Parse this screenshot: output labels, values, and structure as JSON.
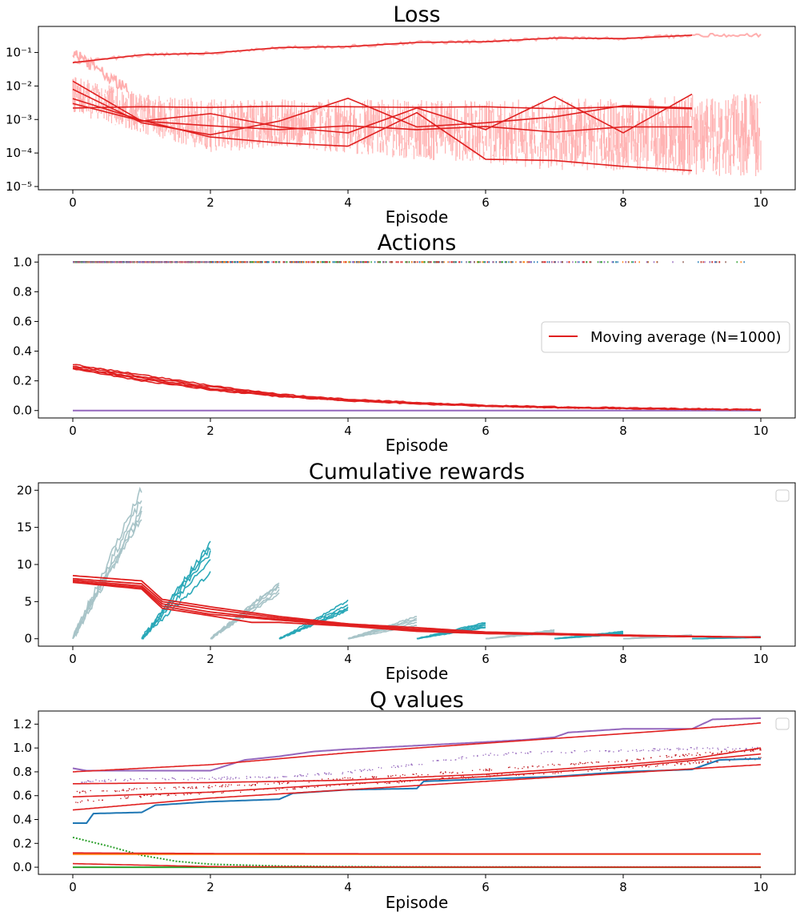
{
  "chart_data": [
    {
      "type": "line",
      "title": "Loss",
      "xlabel": "Episode",
      "ylabel": "",
      "xlim": [
        -0.5,
        10.5
      ],
      "ylim": [
        8e-06,
        0.6
      ],
      "yscale": "log",
      "xticks": [
        0,
        2,
        4,
        6,
        8,
        10
      ],
      "yticks": [
        1e-05,
        0.0001,
        0.001,
        0.01,
        0.1
      ],
      "ytick_labels": [
        "10⁻⁵",
        "10⁻⁴",
        "10⁻³",
        "10⁻²",
        "10⁻¹"
      ],
      "grid": false,
      "colors": {
        "raw": "#ff9a9a",
        "average": "#e02020"
      },
      "series": [
        {
          "x": [
            0,
            1,
            2,
            3,
            4,
            5,
            6,
            7,
            8,
            9
          ],
          "values": [
            0.05,
            0.085,
            0.095,
            0.14,
            0.15,
            0.2,
            0.21,
            0.27,
            0.26,
            0.33
          ]
        },
        {
          "x": [
            0,
            1,
            2,
            3,
            4,
            5,
            6,
            7,
            8,
            9
          ],
          "values": [
            0.014,
            0.0009,
            0.0015,
            0.0006,
            0.0004,
            0.0022,
            0.0005,
            0.0048,
            0.0004,
            0.0057
          ]
        },
        {
          "x": [
            0,
            1,
            2,
            3,
            4,
            5,
            6,
            7,
            8,
            9
          ],
          "values": [
            0.008,
            0.0008,
            0.00035,
            0.0009,
            0.0043,
            0.0006,
            0.0008,
            0.0012,
            0.0026,
            0.0022
          ]
        },
        {
          "x": [
            0,
            1,
            2,
            3,
            4,
            5,
            6,
            7,
            8,
            9
          ],
          "values": [
            0.003,
            0.0009,
            0.00065,
            0.0005,
            0.00065,
            0.0005,
            0.00062,
            0.00042,
            0.0006,
            0.0006
          ]
        },
        {
          "x": [
            0,
            1,
            2,
            3,
            4,
            5,
            6,
            7,
            8,
            9
          ],
          "values": [
            0.0022,
            0.0024,
            0.0023,
            0.0025,
            0.0024,
            0.0023,
            0.0024,
            0.0021,
            0.0024,
            0.0021
          ]
        },
        {
          "x": [
            0,
            1,
            2,
            3,
            4,
            5,
            6,
            7,
            8,
            9
          ],
          "values": [
            0.0042,
            0.00095,
            0.0003,
            0.0002,
            0.00016,
            0.0016,
            6.5e-05,
            6e-05,
            4e-05,
            3e-05
          ]
        }
      ]
    },
    {
      "type": "scatter",
      "title": "Actions",
      "xlabel": "Episode",
      "ylabel": "",
      "xlim": [
        -0.5,
        10.5
      ],
      "ylim": [
        -0.05,
        1.05
      ],
      "xticks": [
        0,
        2,
        4,
        6,
        8,
        10
      ],
      "yticks": [
        0.0,
        0.2,
        0.4,
        0.6,
        0.8,
        1.0
      ],
      "ytick_labels": [
        "0.0",
        "0.2",
        "0.4",
        "0.6",
        "0.8",
        "1.0"
      ],
      "grid": false,
      "legend": {
        "position": "center-right",
        "entries": [
          {
            "label": "Moving average (N=1000)",
            "color": "#e02020"
          }
        ]
      },
      "series": [
        {
          "name": "Moving average (N=1000)",
          "x": [
            0,
            1,
            2,
            3,
            4,
            5,
            6,
            7,
            8,
            9,
            10
          ],
          "values": [
            0.29,
            0.22,
            0.15,
            0.1,
            0.07,
            0.05,
            0.03,
            0.02,
            0.015,
            0.01,
            0.005
          ]
        },
        {
          "x": [
            0,
            1,
            2,
            3,
            4,
            5,
            6,
            7,
            8,
            9,
            10
          ],
          "values": [
            0.31,
            0.24,
            0.17,
            0.11,
            0.075,
            0.055,
            0.035,
            0.025,
            0.018,
            0.012,
            0.006
          ]
        },
        {
          "x": [
            0,
            1,
            2,
            3,
            4,
            5,
            6,
            7,
            8,
            9,
            10
          ],
          "values": [
            0.28,
            0.2,
            0.14,
            0.095,
            0.065,
            0.045,
            0.03,
            0.02,
            0.014,
            0.009,
            0.005
          ]
        },
        {
          "x": [
            0,
            1,
            2,
            3,
            4,
            5,
            6,
            7,
            8,
            9,
            10
          ],
          "values": [
            0.3,
            0.23,
            0.16,
            0.105,
            0.07,
            0.05,
            0.032,
            0.022,
            0.016,
            0.011,
            0.006
          ]
        },
        {
          "x": [
            0,
            1,
            2,
            3,
            4,
            5,
            6,
            7,
            8,
            9,
            10
          ],
          "values": [
            0.285,
            0.21,
            0.145,
            0.098,
            0.068,
            0.048,
            0.031,
            0.021,
            0.015,
            0.01,
            0.005
          ]
        }
      ]
    },
    {
      "type": "line",
      "title": "Cumulative rewards",
      "xlabel": "Episode",
      "ylabel": "",
      "xlim": [
        -0.5,
        10.5
      ],
      "ylim": [
        -1,
        21
      ],
      "xticks": [
        0,
        2,
        4,
        6,
        8,
        10
      ],
      "yticks": [
        0,
        5,
        10,
        15,
        20
      ],
      "ytick_labels": [
        "0",
        "5",
        "10",
        "15",
        "20"
      ],
      "grid": false,
      "legend": {
        "position": "top-right",
        "entries": []
      },
      "colors": {
        "even_episodes": "#a8c4c8",
        "odd_episodes": "#2aa8b8",
        "average": "#e02020"
      },
      "episode_finals": [
        [
          20.2,
          18.8,
          17.5,
          17.0,
          16.4
        ],
        [
          12.8,
          12.3,
          11.6,
          10.6,
          8.9
        ],
        [
          7.6,
          7.3,
          7.0,
          6.5,
          6.1
        ],
        [
          5.1,
          4.6,
          4.2,
          4.0,
          3.8
        ],
        [
          3.0,
          2.7,
          2.5,
          2.2,
          1.8
        ],
        [
          2.2,
          2.0,
          1.8,
          1.6,
          1.5
        ],
        [
          1.2,
          1.1,
          1.0,
          0.9,
          0.8
        ],
        [
          1.0,
          0.9,
          0.8,
          0.7,
          0.6
        ],
        [
          0.5,
          0.45,
          0.4,
          0.35,
          0.3
        ],
        [
          0.3,
          0.25,
          0.2,
          0.2,
          0.15
        ]
      ],
      "series": [
        {
          "x": [
            0,
            1,
            1.3,
            2,
            3,
            4,
            5,
            6,
            7,
            8,
            9,
            10
          ],
          "values": [
            8.5,
            7.8,
            5.3,
            4.3,
            3.0,
            2.0,
            1.5,
            0.9,
            0.7,
            0.5,
            0.35,
            0.2
          ]
        },
        {
          "x": [
            0,
            1,
            1.3,
            2,
            3,
            4,
            5,
            6,
            7,
            8,
            9,
            10
          ],
          "values": [
            8.1,
            7.4,
            5.0,
            4.0,
            2.8,
            1.9,
            1.3,
            0.9,
            0.65,
            0.45,
            0.3,
            0.2
          ]
        },
        {
          "x": [
            0,
            1,
            1.3,
            2,
            3,
            4,
            5,
            6,
            7,
            8,
            9,
            10
          ],
          "values": [
            7.9,
            7.1,
            4.7,
            3.6,
            2.6,
            2.0,
            1.2,
            0.8,
            0.6,
            0.4,
            0.3,
            0.2
          ]
        },
        {
          "x": [
            0,
            1,
            1.3,
            2,
            3,
            4,
            5,
            6,
            7,
            8,
            9,
            10
          ],
          "values": [
            7.7,
            6.9,
            4.4,
            3.3,
            2.5,
            1.8,
            1.1,
            0.7,
            0.6,
            0.4,
            0.3,
            0.2
          ]
        },
        {
          "x": [
            0,
            1,
            1.3,
            2,
            2.6,
            3,
            4,
            5,
            6,
            7,
            8,
            9,
            10
          ],
          "values": [
            7.6,
            6.7,
            4.1,
            3.1,
            2.2,
            2.2,
            1.7,
            1.0,
            0.7,
            0.55,
            0.4,
            0.3,
            0.2
          ]
        }
      ]
    },
    {
      "type": "line",
      "title": "Q values",
      "xlabel": "Episode",
      "ylabel": "",
      "xlim": [
        -0.5,
        10.5
      ],
      "ylim": [
        -0.06,
        1.31
      ],
      "xticks": [
        0,
        2,
        4,
        6,
        8,
        10
      ],
      "yticks": [
        0.0,
        0.2,
        0.4,
        0.6,
        0.8,
        1.0,
        1.2
      ],
      "ytick_labels": [
        "0.0",
        "0.2",
        "0.4",
        "0.6",
        "0.8",
        "1.0",
        "1.2"
      ],
      "grid": false,
      "legend": {
        "position": "top-right",
        "entries": []
      },
      "colors": {
        "purple": "#9467bd",
        "blue": "#1f77b4",
        "green": "#2ca02c",
        "orange": "#ff7f0e",
        "dark_red": "#c0161c",
        "average": "#e02020"
      },
      "series": [
        {
          "color": "#9467bd",
          "x": [
            0,
            0.2,
            1,
            2,
            2.5,
            3,
            3.5,
            4,
            5,
            6,
            6.6,
            7,
            7.2,
            8,
            9,
            9.3,
            10
          ],
          "values": [
            0.83,
            0.81,
            0.81,
            0.81,
            0.9,
            0.93,
            0.97,
            0.99,
            1.02,
            1.05,
            1.07,
            1.09,
            1.13,
            1.16,
            1.16,
            1.24,
            1.25
          ]
        },
        {
          "color": "#1f77b4",
          "x": [
            0,
            0.2,
            0.3,
            1,
            1.2,
            2,
            3,
            3.2,
            4,
            5,
            5.1,
            6,
            7,
            8,
            9,
            9.4,
            10
          ],
          "values": [
            0.37,
            0.37,
            0.45,
            0.46,
            0.52,
            0.55,
            0.57,
            0.62,
            0.65,
            0.66,
            0.72,
            0.74,
            0.76,
            0.8,
            0.82,
            0.9,
            0.91
          ]
        },
        {
          "color": "#2ca02c",
          "x": [
            0,
            0.5,
            1,
            1.5,
            2,
            3,
            4,
            5,
            6,
            8,
            10
          ],
          "values": [
            0.25,
            0.18,
            0.1,
            0.05,
            0.025,
            0.01,
            0.005,
            0.003,
            0.002,
            0.001,
            0.001
          ]
        },
        {
          "color": "#2ca02c",
          "x": [
            0,
            10
          ],
          "values": [
            0.0,
            0.0
          ]
        },
        {
          "color": "#ff7f0e",
          "x": [
            0,
            10
          ],
          "values": [
            0.11,
            0.11
          ]
        },
        {
          "color": "#e02020",
          "x": [
            0,
            2,
            4,
            6,
            8,
            9,
            10
          ],
          "values": [
            0.8,
            0.86,
            0.96,
            1.04,
            1.12,
            1.16,
            1.21
          ]
        },
        {
          "color": "#e02020",
          "x": [
            0,
            2,
            4,
            6,
            8,
            9,
            10
          ],
          "values": [
            0.7,
            0.71,
            0.73,
            0.78,
            0.86,
            0.91,
            1.0
          ]
        },
        {
          "color": "#e02020",
          "x": [
            0,
            2,
            4,
            6,
            8,
            10
          ],
          "values": [
            0.59,
            0.63,
            0.7,
            0.76,
            0.84,
            0.95
          ]
        },
        {
          "color": "#e02020",
          "x": [
            0,
            2,
            4,
            6,
            8,
            10
          ],
          "values": [
            0.48,
            0.58,
            0.65,
            0.72,
            0.79,
            0.86
          ]
        },
        {
          "color": "#e02020",
          "x": [
            0,
            2,
            4,
            6,
            8,
            10
          ],
          "values": [
            0.12,
            0.115,
            0.113,
            0.112,
            0.112,
            0.112
          ]
        },
        {
          "color": "#e02020",
          "x": [
            0,
            2,
            4,
            6,
            8,
            10
          ],
          "values": [
            0.03,
            0.005,
            0.002,
            0.001,
            0.001,
            0.001
          ]
        }
      ],
      "scatter_levels": [
        {
          "color": "#9467bd",
          "x": [
            0,
            1,
            2,
            3,
            4,
            5,
            6,
            7,
            8,
            9,
            10
          ],
          "values": [
            0.72,
            0.74,
            0.75,
            0.76,
            0.8,
            0.87,
            0.95,
            0.97,
            0.98,
            1.0,
            1.0
          ]
        },
        {
          "color": "#c0161c",
          "x": [
            0,
            1,
            2,
            3,
            4,
            5,
            6,
            7,
            8,
            9,
            10
          ],
          "values": [
            0.63,
            0.66,
            0.68,
            0.71,
            0.75,
            0.78,
            0.82,
            0.86,
            0.9,
            0.95,
            0.99
          ]
        },
        {
          "color": "#c0161c",
          "x": [
            0,
            1,
            2,
            3,
            4,
            5,
            6,
            7,
            8,
            9,
            10
          ],
          "values": [
            0.55,
            0.6,
            0.63,
            0.66,
            0.7,
            0.73,
            0.77,
            0.8,
            0.84,
            0.88,
            0.92
          ]
        }
      ]
    }
  ]
}
